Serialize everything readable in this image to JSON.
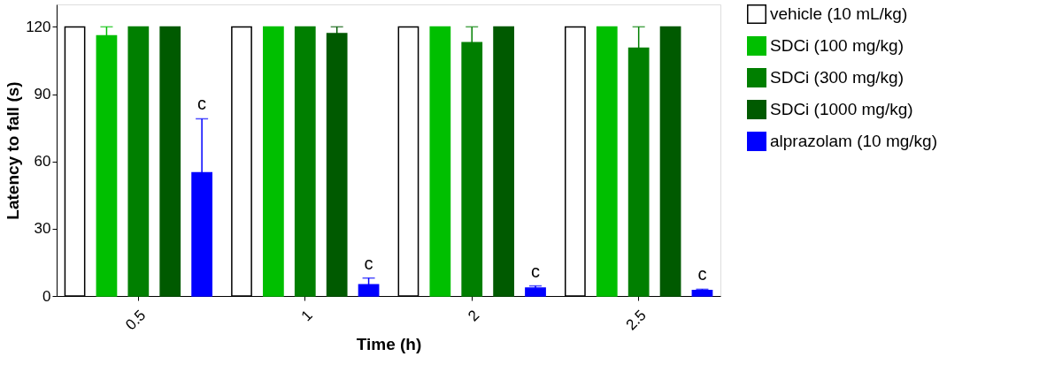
{
  "chart_data": {
    "type": "bar",
    "xlabel": "Time (h)",
    "ylabel": "Latency to fall (s)",
    "categories": [
      "0.5",
      "1",
      "2",
      "2.5"
    ],
    "series": [
      {
        "name": "vehicle (10 mL/kg)",
        "color": "#ffffff",
        "values": [
          120,
          120,
          120,
          120
        ]
      },
      {
        "name": "SDCi (100 mg/kg)",
        "color": "#00bf00",
        "values": [
          116,
          120,
          120,
          120
        ],
        "errors": [
          [
            116,
            120
          ],
          null,
          null,
          null
        ]
      },
      {
        "name": "SDCi (300 mg/kg)",
        "color": "#007f00",
        "values": [
          120,
          120,
          113,
          110.5
        ],
        "errors": [
          null,
          null,
          [
            113,
            120
          ],
          [
            110.5,
            120
          ]
        ]
      },
      {
        "name": "SDCi (1000 mg/kg)",
        "color": "#005a00",
        "values": [
          120,
          117,
          120,
          120
        ],
        "errors": [
          null,
          [
            117,
            120
          ],
          null,
          null
        ]
      },
      {
        "name": "alprazolam (10 mg/kg)",
        "color": "#0000ff",
        "values": [
          55,
          5,
          3.5,
          2.5
        ],
        "errors": [
          [
            55,
            79
          ],
          [
            5,
            8
          ],
          [
            3.5,
            4.5
          ],
          [
            2.5,
            3
          ]
        ]
      }
    ],
    "annotations": [
      "c",
      "c",
      "c",
      "c"
    ],
    "ylim": [
      0,
      130
    ],
    "yticks": [
      0,
      30,
      60,
      90,
      120
    ],
    "grid": false,
    "legend": "top right"
  }
}
